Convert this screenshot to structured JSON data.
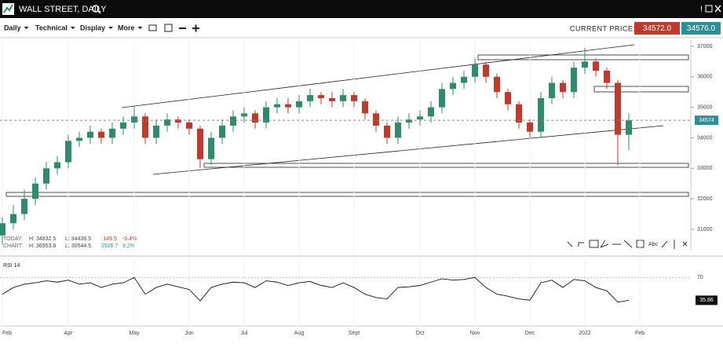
{
  "header": {
    "title": "WALL STREET, DAILY"
  },
  "toolbar": {
    "menus": [
      "Daily",
      "Technical",
      "Display",
      "More"
    ],
    "price_label": "CURRENT PRICE:",
    "sell_price": "34572.0",
    "buy_price": "34576.0"
  },
  "info": {
    "today": [
      "TODAY:",
      "H: 34832.5",
      "L: 34436.5",
      "-149.5",
      "-0.4%"
    ],
    "chart": [
      "CHART:",
      "H: 36953.8",
      "L: 30544.5",
      "2926.7",
      "9.2%"
    ]
  },
  "chart_data": [
    {
      "type": "candlestick",
      "up_color": "#2e8b6e",
      "down_color": "#c0392b",
      "categories": [
        "Feb",
        null,
        null,
        null,
        null,
        null,
        "Apr",
        null,
        null,
        null,
        null,
        null,
        "May",
        null,
        null,
        null,
        null,
        "Jun",
        null,
        null,
        null,
        null,
        "Jul",
        null,
        null,
        null,
        null,
        "Aug",
        null,
        null,
        null,
        null,
        "Sept",
        null,
        null,
        null,
        null,
        null,
        "Oct",
        null,
        null,
        null,
        null,
        "Nov",
        null,
        null,
        null,
        null,
        "Dec",
        null,
        null,
        null,
        null,
        "2022",
        null,
        null,
        null,
        null,
        "Feb"
      ],
      "open": [
        30800,
        31200,
        31500,
        32000,
        32500,
        33000,
        33200,
        33900,
        34000,
        34200,
        34000,
        34300,
        34500,
        34700,
        34000,
        34400,
        34600,
        34500,
        34300,
        33300,
        34000,
        34400,
        34700,
        34800,
        34500,
        35000,
        35100,
        35000,
        35200,
        35400,
        35300,
        35200,
        35400,
        35200,
        34800,
        34400,
        34000,
        34500,
        34600,
        34700,
        35000,
        35600,
        35800,
        36000,
        36400,
        36000,
        35500,
        35100,
        34500,
        34200,
        35300,
        35800,
        35500,
        36300,
        36500,
        36200,
        35800,
        34100,
        null
      ],
      "high": [
        31400,
        31800,
        32300,
        32700,
        33200,
        33400,
        34100,
        34200,
        34400,
        34300,
        34500,
        34700,
        35050,
        34800,
        34600,
        34800,
        34700,
        34600,
        34400,
        34200,
        34600,
        34900,
        35000,
        34900,
        35200,
        35300,
        35300,
        35400,
        35600,
        35500,
        35500,
        35600,
        35500,
        35300,
        34900,
        34500,
        34700,
        34800,
        34900,
        35200,
        35800,
        36000,
        36200,
        36600,
        36500,
        36100,
        35600,
        35200,
        34600,
        35500,
        36000,
        35900,
        36500,
        36950,
        36600,
        36300,
        35900,
        34800,
        null
      ],
      "low": [
        30500,
        31000,
        31300,
        31800,
        32300,
        32800,
        33000,
        33700,
        33800,
        33800,
        33800,
        34100,
        34300,
        33800,
        33800,
        34200,
        34300,
        34100,
        33000,
        33100,
        33800,
        34200,
        34500,
        34300,
        34300,
        34800,
        34800,
        34800,
        35000,
        35100,
        35000,
        35000,
        35000,
        34600,
        34200,
        33800,
        33800,
        34300,
        34400,
        34500,
        34800,
        35400,
        35600,
        35800,
        35800,
        35300,
        34900,
        34300,
        34000,
        34000,
        35100,
        35300,
        35300,
        36100,
        36000,
        35600,
        33100,
        33600,
        null
      ],
      "close": [
        31200,
        31500,
        32000,
        32500,
        33000,
        33200,
        33900,
        34000,
        34200,
        34000,
        34300,
        34500,
        34700,
        34000,
        34400,
        34600,
        34500,
        34300,
        33300,
        34000,
        34400,
        34700,
        34800,
        34500,
        35000,
        35100,
        35000,
        35200,
        35400,
        35300,
        35200,
        35400,
        35200,
        34800,
        34400,
        34000,
        34500,
        34600,
        34700,
        35000,
        35600,
        35800,
        36000,
        36400,
        36000,
        35500,
        35100,
        34500,
        34200,
        35300,
        35800,
        35500,
        36300,
        36500,
        36200,
        35800,
        34100,
        34574,
        null
      ],
      "ylim": [
        30330,
        37230
      ],
      "yticks": [
        31000,
        32000,
        33000,
        34000,
        35000,
        36000,
        37000
      ],
      "current_price": 34574
    },
    {
      "type": "line",
      "title": "RSI 14",
      "color": "#111111",
      "values": [
        45,
        55,
        60,
        62,
        65,
        63,
        66,
        60,
        62,
        55,
        60,
        62,
        70,
        45,
        55,
        60,
        56,
        52,
        35,
        55,
        60,
        63,
        62,
        55,
        65,
        63,
        58,
        62,
        64,
        58,
        55,
        62,
        55,
        45,
        40,
        38,
        55,
        56,
        58,
        63,
        68,
        66,
        67,
        70,
        55,
        45,
        42,
        38,
        36,
        62,
        66,
        55,
        67,
        65,
        55,
        50,
        33,
        35.86,
        null
      ],
      "ylim": [
        -6,
        95
      ],
      "yticks": [
        70
      ],
      "last_value": 35.86
    }
  ]
}
